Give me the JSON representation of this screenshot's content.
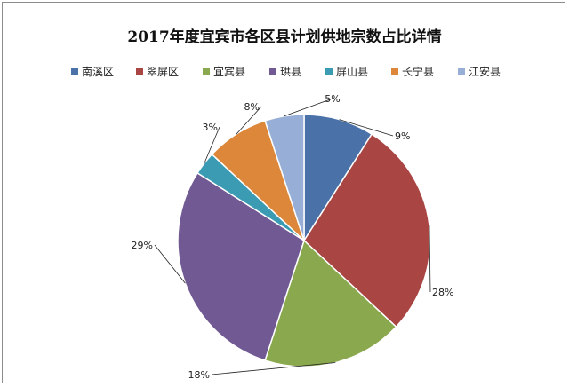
{
  "chart_data": {
    "type": "pie",
    "title": "2017年度宜宾市各区县计划供地宗数占比详情",
    "categories": [
      "南溪区",
      "翠屏区",
      "宜宾县",
      "珙县",
      "屏山县",
      "长宁县",
      "江安县"
    ],
    "values": [
      9,
      28,
      18,
      29,
      3,
      8,
      5
    ],
    "labels": [
      "9%",
      "28%",
      "18%",
      "29%",
      "3%",
      "8%",
      "5%"
    ],
    "colors": [
      "#4a72a8",
      "#a94542",
      "#8aa84d",
      "#715a94",
      "#3a9bb2",
      "#dd873a",
      "#97afd6"
    ],
    "legend": "top"
  }
}
